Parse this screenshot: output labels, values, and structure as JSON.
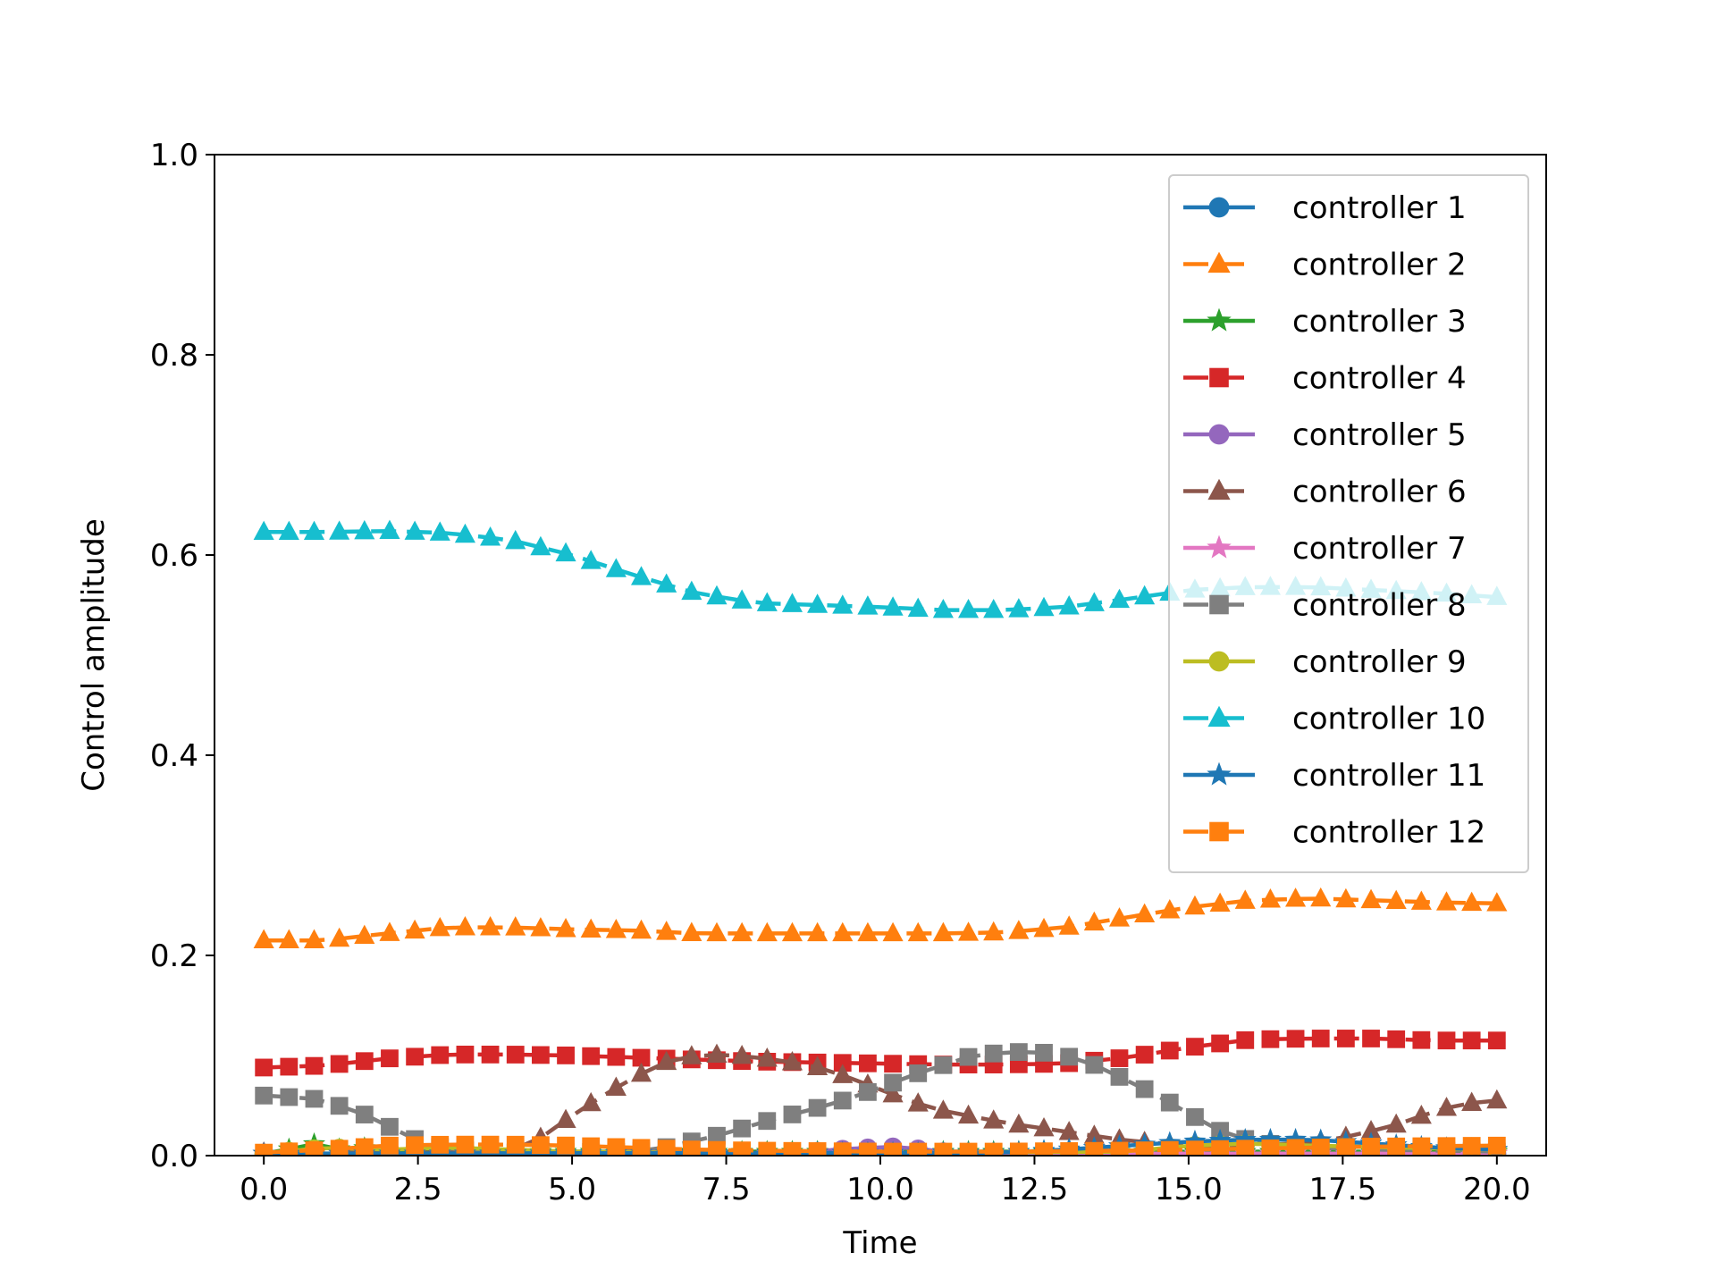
{
  "chart_data": {
    "type": "line",
    "title": "",
    "xlabel": "Time",
    "ylabel": "Control amplitude",
    "xlim": [
      -0.8,
      20.8
    ],
    "ylim": [
      0.0,
      1.0
    ],
    "xticks": [
      "0.0",
      "2.5",
      "5.0",
      "7.5",
      "10.0",
      "12.5",
      "15.0",
      "17.5",
      "20.0"
    ],
    "xtick_values": [
      0,
      2.5,
      5,
      7.5,
      10,
      12.5,
      15,
      17.5,
      20
    ],
    "yticks": [
      "0.0",
      "0.2",
      "0.4",
      "0.6",
      "0.8",
      "1.0"
    ],
    "ytick_values": [
      0,
      0.2,
      0.4,
      0.6,
      0.8,
      1.0
    ],
    "grid": false,
    "legend_position": "top-right",
    "marker_count": 50,
    "series": [
      {
        "name": "controller 1",
        "color": "#1f77b4",
        "marker": "circle",
        "dashed": false,
        "knots": [
          [
            0,
            0.0
          ],
          [
            20,
            0.002
          ]
        ]
      },
      {
        "name": "controller 2",
        "color": "#ff7f0e",
        "marker": "triangle",
        "dashed": true,
        "knots": [
          [
            0,
            0.215
          ],
          [
            1,
            0.215
          ],
          [
            2,
            0.222
          ],
          [
            3,
            0.228
          ],
          [
            4,
            0.228
          ],
          [
            5,
            0.226
          ],
          [
            6,
            0.225
          ],
          [
            7,
            0.222
          ],
          [
            9,
            0.222
          ],
          [
            10,
            0.222
          ],
          [
            11,
            0.222
          ],
          [
            12,
            0.223
          ],
          [
            13,
            0.228
          ],
          [
            14,
            0.238
          ],
          [
            15,
            0.248
          ],
          [
            16,
            0.255
          ],
          [
            17,
            0.257
          ],
          [
            18,
            0.255
          ],
          [
            19,
            0.253
          ],
          [
            20,
            0.252
          ]
        ]
      },
      {
        "name": "controller 3",
        "color": "#2ca02c",
        "marker": "star",
        "dashed": false,
        "knots": [
          [
            0,
            0.002
          ],
          [
            0.2,
            0.012
          ],
          [
            0.5,
            0.004
          ],
          [
            0.8,
            0.012
          ],
          [
            1.1,
            0.004
          ],
          [
            1.4,
            0.01
          ],
          [
            2,
            0.004
          ],
          [
            20,
            0.004
          ]
        ]
      },
      {
        "name": "controller 4",
        "color": "#d62728",
        "marker": "square",
        "dashed": true,
        "knots": [
          [
            0,
            0.088
          ],
          [
            1,
            0.09
          ],
          [
            2,
            0.097
          ],
          [
            3,
            0.101
          ],
          [
            4,
            0.101
          ],
          [
            5,
            0.1
          ],
          [
            6,
            0.098
          ],
          [
            7,
            0.096
          ],
          [
            8,
            0.094
          ],
          [
            9,
            0.093
          ],
          [
            10,
            0.092
          ],
          [
            11,
            0.091
          ],
          [
            12,
            0.091
          ],
          [
            13,
            0.092
          ],
          [
            14,
            0.098
          ],
          [
            15,
            0.108
          ],
          [
            16,
            0.116
          ],
          [
            17,
            0.117
          ],
          [
            18,
            0.117
          ],
          [
            19,
            0.115
          ],
          [
            20,
            0.115
          ]
        ]
      },
      {
        "name": "controller 5",
        "color": "#9467bd",
        "marker": "circle",
        "dashed": false,
        "knots": [
          [
            0,
            0.002
          ],
          [
            8.5,
            0.002
          ],
          [
            9.5,
            0.007
          ],
          [
            10.3,
            0.009
          ],
          [
            11,
            0.004
          ],
          [
            12,
            0.002
          ],
          [
            20,
            0.002
          ]
        ]
      },
      {
        "name": "controller 6",
        "color": "#8c564b",
        "marker": "triangle",
        "dashed": true,
        "knots": [
          [
            0,
            0.003
          ],
          [
            3,
            0.003
          ],
          [
            4,
            0.005
          ],
          [
            4.5,
            0.018
          ],
          [
            5,
            0.04
          ],
          [
            5.5,
            0.06
          ],
          [
            6,
            0.078
          ],
          [
            6.5,
            0.093
          ],
          [
            7,
            0.1
          ],
          [
            7.5,
            0.101
          ],
          [
            8,
            0.098
          ],
          [
            8.5,
            0.094
          ],
          [
            9,
            0.088
          ],
          [
            9.5,
            0.078
          ],
          [
            10,
            0.066
          ],
          [
            10.5,
            0.054
          ],
          [
            11,
            0.045
          ],
          [
            12,
            0.033
          ],
          [
            13,
            0.024
          ],
          [
            14,
            0.015
          ],
          [
            15,
            0.01
          ],
          [
            16,
            0.01
          ],
          [
            17,
            0.013
          ],
          [
            17.5,
            0.018
          ],
          [
            18,
            0.025
          ],
          [
            18.5,
            0.033
          ],
          [
            19,
            0.045
          ],
          [
            19.5,
            0.052
          ],
          [
            20,
            0.055
          ]
        ]
      },
      {
        "name": "controller 7",
        "color": "#e377c2",
        "marker": "star",
        "dashed": false,
        "knots": [
          [
            0,
            0.002
          ],
          [
            20,
            0.002
          ]
        ]
      },
      {
        "name": "controller 8",
        "color": "#7f7f7f",
        "marker": "square",
        "dashed": true,
        "knots": [
          [
            0,
            0.06
          ],
          [
            0.8,
            0.057
          ],
          [
            1.5,
            0.045
          ],
          [
            2,
            0.03
          ],
          [
            2.5,
            0.015
          ],
          [
            3,
            0.006
          ],
          [
            4,
            0.003
          ],
          [
            6,
            0.004
          ],
          [
            6.5,
            0.008
          ],
          [
            7,
            0.015
          ],
          [
            7.5,
            0.022
          ],
          [
            8,
            0.032
          ],
          [
            8.5,
            0.04
          ],
          [
            9,
            0.048
          ],
          [
            9.5,
            0.057
          ],
          [
            10,
            0.068
          ],
          [
            10.5,
            0.08
          ],
          [
            11,
            0.09
          ],
          [
            11.5,
            0.1
          ],
          [
            12,
            0.103
          ],
          [
            12.5,
            0.104
          ],
          [
            13,
            0.1
          ],
          [
            13.5,
            0.09
          ],
          [
            14,
            0.075
          ],
          [
            14.5,
            0.06
          ],
          [
            15,
            0.042
          ],
          [
            15.5,
            0.025
          ],
          [
            16,
            0.015
          ],
          [
            16.5,
            0.01
          ],
          [
            17,
            0.008
          ],
          [
            18,
            0.006
          ],
          [
            19,
            0.005
          ],
          [
            20,
            0.004
          ]
        ]
      },
      {
        "name": "controller 9",
        "color": "#bcbd22",
        "marker": "circle",
        "dashed": false,
        "knots": [
          [
            0,
            0.002
          ],
          [
            1,
            0.008
          ],
          [
            2,
            0.006
          ],
          [
            3,
            0.008
          ],
          [
            5,
            0.004
          ],
          [
            8,
            0.002
          ],
          [
            14,
            0.004
          ],
          [
            15,
            0.01
          ],
          [
            16,
            0.012
          ],
          [
            17,
            0.01
          ],
          [
            20,
            0.006
          ]
        ]
      },
      {
        "name": "controller 10",
        "color": "#17becf",
        "marker": "triangle",
        "dashed": true,
        "knots": [
          [
            0,
            0.623
          ],
          [
            1,
            0.623
          ],
          [
            2,
            0.624
          ],
          [
            3,
            0.622
          ],
          [
            4,
            0.615
          ],
          [
            5,
            0.6
          ],
          [
            6,
            0.58
          ],
          [
            7,
            0.562
          ],
          [
            8,
            0.552
          ],
          [
            9,
            0.55
          ],
          [
            10,
            0.548
          ],
          [
            11,
            0.545
          ],
          [
            12,
            0.545
          ],
          [
            13,
            0.548
          ],
          [
            14,
            0.556
          ],
          [
            15,
            0.565
          ],
          [
            16,
            0.568
          ],
          [
            17,
            0.568
          ],
          [
            18,
            0.565
          ],
          [
            19,
            0.562
          ],
          [
            20,
            0.558
          ]
        ]
      },
      {
        "name": "controller 11",
        "color": "#1f77b4",
        "marker": "star",
        "dashed": false,
        "knots": [
          [
            0,
            0.002
          ],
          [
            12,
            0.003
          ],
          [
            13,
            0.006
          ],
          [
            14,
            0.01
          ],
          [
            15,
            0.014
          ],
          [
            16,
            0.016
          ],
          [
            17,
            0.016
          ],
          [
            18,
            0.012
          ],
          [
            19,
            0.008
          ],
          [
            20,
            0.006
          ]
        ]
      },
      {
        "name": "controller 12",
        "color": "#ff7f0e",
        "marker": "square",
        "dashed": true,
        "knots": [
          [
            0,
            0.003
          ],
          [
            1,
            0.006
          ],
          [
            2,
            0.01
          ],
          [
            3,
            0.011
          ],
          [
            4,
            0.011
          ],
          [
            5,
            0.01
          ],
          [
            6,
            0.008
          ],
          [
            7,
            0.006
          ],
          [
            8,
            0.005
          ],
          [
            10,
            0.004
          ],
          [
            12,
            0.004
          ],
          [
            14,
            0.005
          ],
          [
            16,
            0.007
          ],
          [
            18,
            0.009
          ],
          [
            20,
            0.01
          ]
        ]
      }
    ]
  }
}
